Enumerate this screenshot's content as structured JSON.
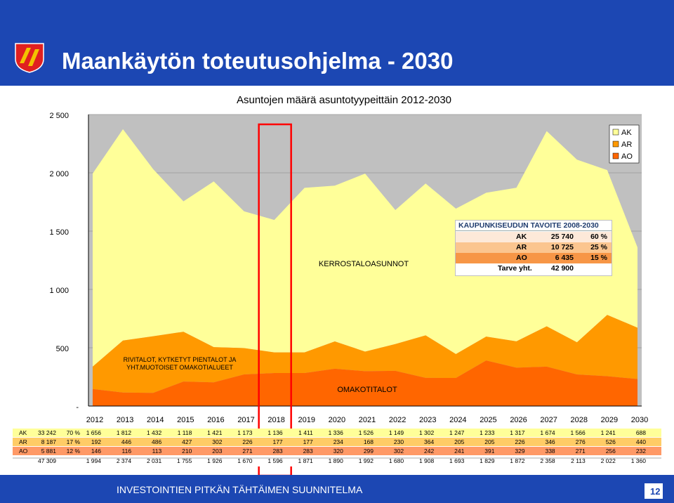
{
  "header": {
    "title": "Maankäytön toteutusohjelma - 2030"
  },
  "footer": {
    "text": "INVESTOINTIEN PITKÄN TÄHTÄIMEN SUUNNITELMA",
    "page_number": "12"
  },
  "colors": {
    "header_bg": "#1c47b3",
    "AK": "#ffff99",
    "AR": "#ff9900",
    "AO": "#ff6600",
    "plot_bg": "#c0c0c0",
    "highlight": "#ff0000"
  },
  "annotations": {
    "kerros": "KERROSTALOASUNNOT",
    "rivi": "RIVITALOT, KYTKETYT PIENTALOT JA YHT.MUOTOISET OMAKOTIALUEET",
    "omakoti": "OMAKOTITALOT",
    "highlighted_year": "2018"
  },
  "target_box": {
    "title": "KAUPUNKISEUDUN TAVOITE 2008-2030",
    "rows": [
      {
        "label": "AK",
        "value": "25 740",
        "pct": "60 %",
        "color": "#fde9d9"
      },
      {
        "label": "AR",
        "value": "10 725",
        "pct": "25 %",
        "color": "#fbc58f"
      },
      {
        "label": "AO",
        "value": "6 435",
        "pct": "15 %",
        "color": "#f79646"
      },
      {
        "label": "Tarve yht.",
        "value": "42 900",
        "pct": "",
        "color": "#ffffff"
      }
    ]
  },
  "chart_data": {
    "type": "area",
    "title": "Asuntojen määrä asuntotyypeittäin 2012-2030",
    "stacked": true,
    "x": [
      "2012",
      "2013",
      "2014",
      "2015",
      "2016",
      "2017",
      "2018",
      "2019",
      "2020",
      "2021",
      "2022",
      "2023",
      "2024",
      "2025",
      "2026",
      "2027",
      "2028",
      "2029",
      "2030"
    ],
    "ylim": [
      0,
      2500
    ],
    "yticks": [
      "-",
      "500",
      "1 000",
      "1 500",
      "2 000",
      "2 500"
    ],
    "grid": true,
    "legend": "top-right",
    "series": [
      {
        "name": "AO",
        "values": [
          146,
          116,
          113,
          210,
          203,
          271,
          283,
          283,
          320,
          299,
          302,
          242,
          241,
          391,
          329,
          338,
          271,
          256,
          232
        ]
      },
      {
        "name": "AR",
        "values": [
          192,
          446,
          486,
          427,
          302,
          226,
          177,
          177,
          234,
          168,
          230,
          364,
          205,
          205,
          226,
          346,
          276,
          526,
          440
        ]
      },
      {
        "name": "AK",
        "values": [
          1656,
          1812,
          1432,
          1118,
          1421,
          1173,
          1136,
          1411,
          1336,
          1526,
          1149,
          1302,
          1247,
          1233,
          1317,
          1674,
          1566,
          1241,
          688
        ]
      }
    ],
    "table": {
      "rows": [
        {
          "label": "AK",
          "total": "33 242",
          "pct": "70 %",
          "cells": [
            "1 656",
            "1 812",
            "1 432",
            "1 118",
            "1 421",
            "1 173",
            "1 136",
            "1 411",
            "1 336",
            "1 526",
            "1 149",
            "1 302",
            "1 247",
            "1 233",
            "1 317",
            "1 674",
            "1 566",
            "1 241",
            "688"
          ]
        },
        {
          "label": "AR",
          "total": "8 187",
          "pct": "17 %",
          "cells": [
            "192",
            "446",
            "486",
            "427",
            "302",
            "226",
            "177",
            "177",
            "234",
            "168",
            "230",
            "364",
            "205",
            "205",
            "226",
            "346",
            "276",
            "526",
            "440"
          ]
        },
        {
          "label": "AO",
          "total": "5 881",
          "pct": "12 %",
          "cells": [
            "146",
            "116",
            "113",
            "210",
            "203",
            "271",
            "283",
            "283",
            "320",
            "299",
            "302",
            "242",
            "241",
            "391",
            "329",
            "338",
            "271",
            "256",
            "232"
          ]
        },
        {
          "label": "",
          "total": "47 309",
          "pct": "",
          "cells": [
            "1 994",
            "2 374",
            "2 031",
            "1 755",
            "1 926",
            "1 670",
            "1 596",
            "1 871",
            "1 890",
            "1 992",
            "1 680",
            "1 908",
            "1 693",
            "1 829",
            "1 872",
            "2 358",
            "2 113",
            "2 022",
            "1 360"
          ]
        }
      ]
    }
  }
}
